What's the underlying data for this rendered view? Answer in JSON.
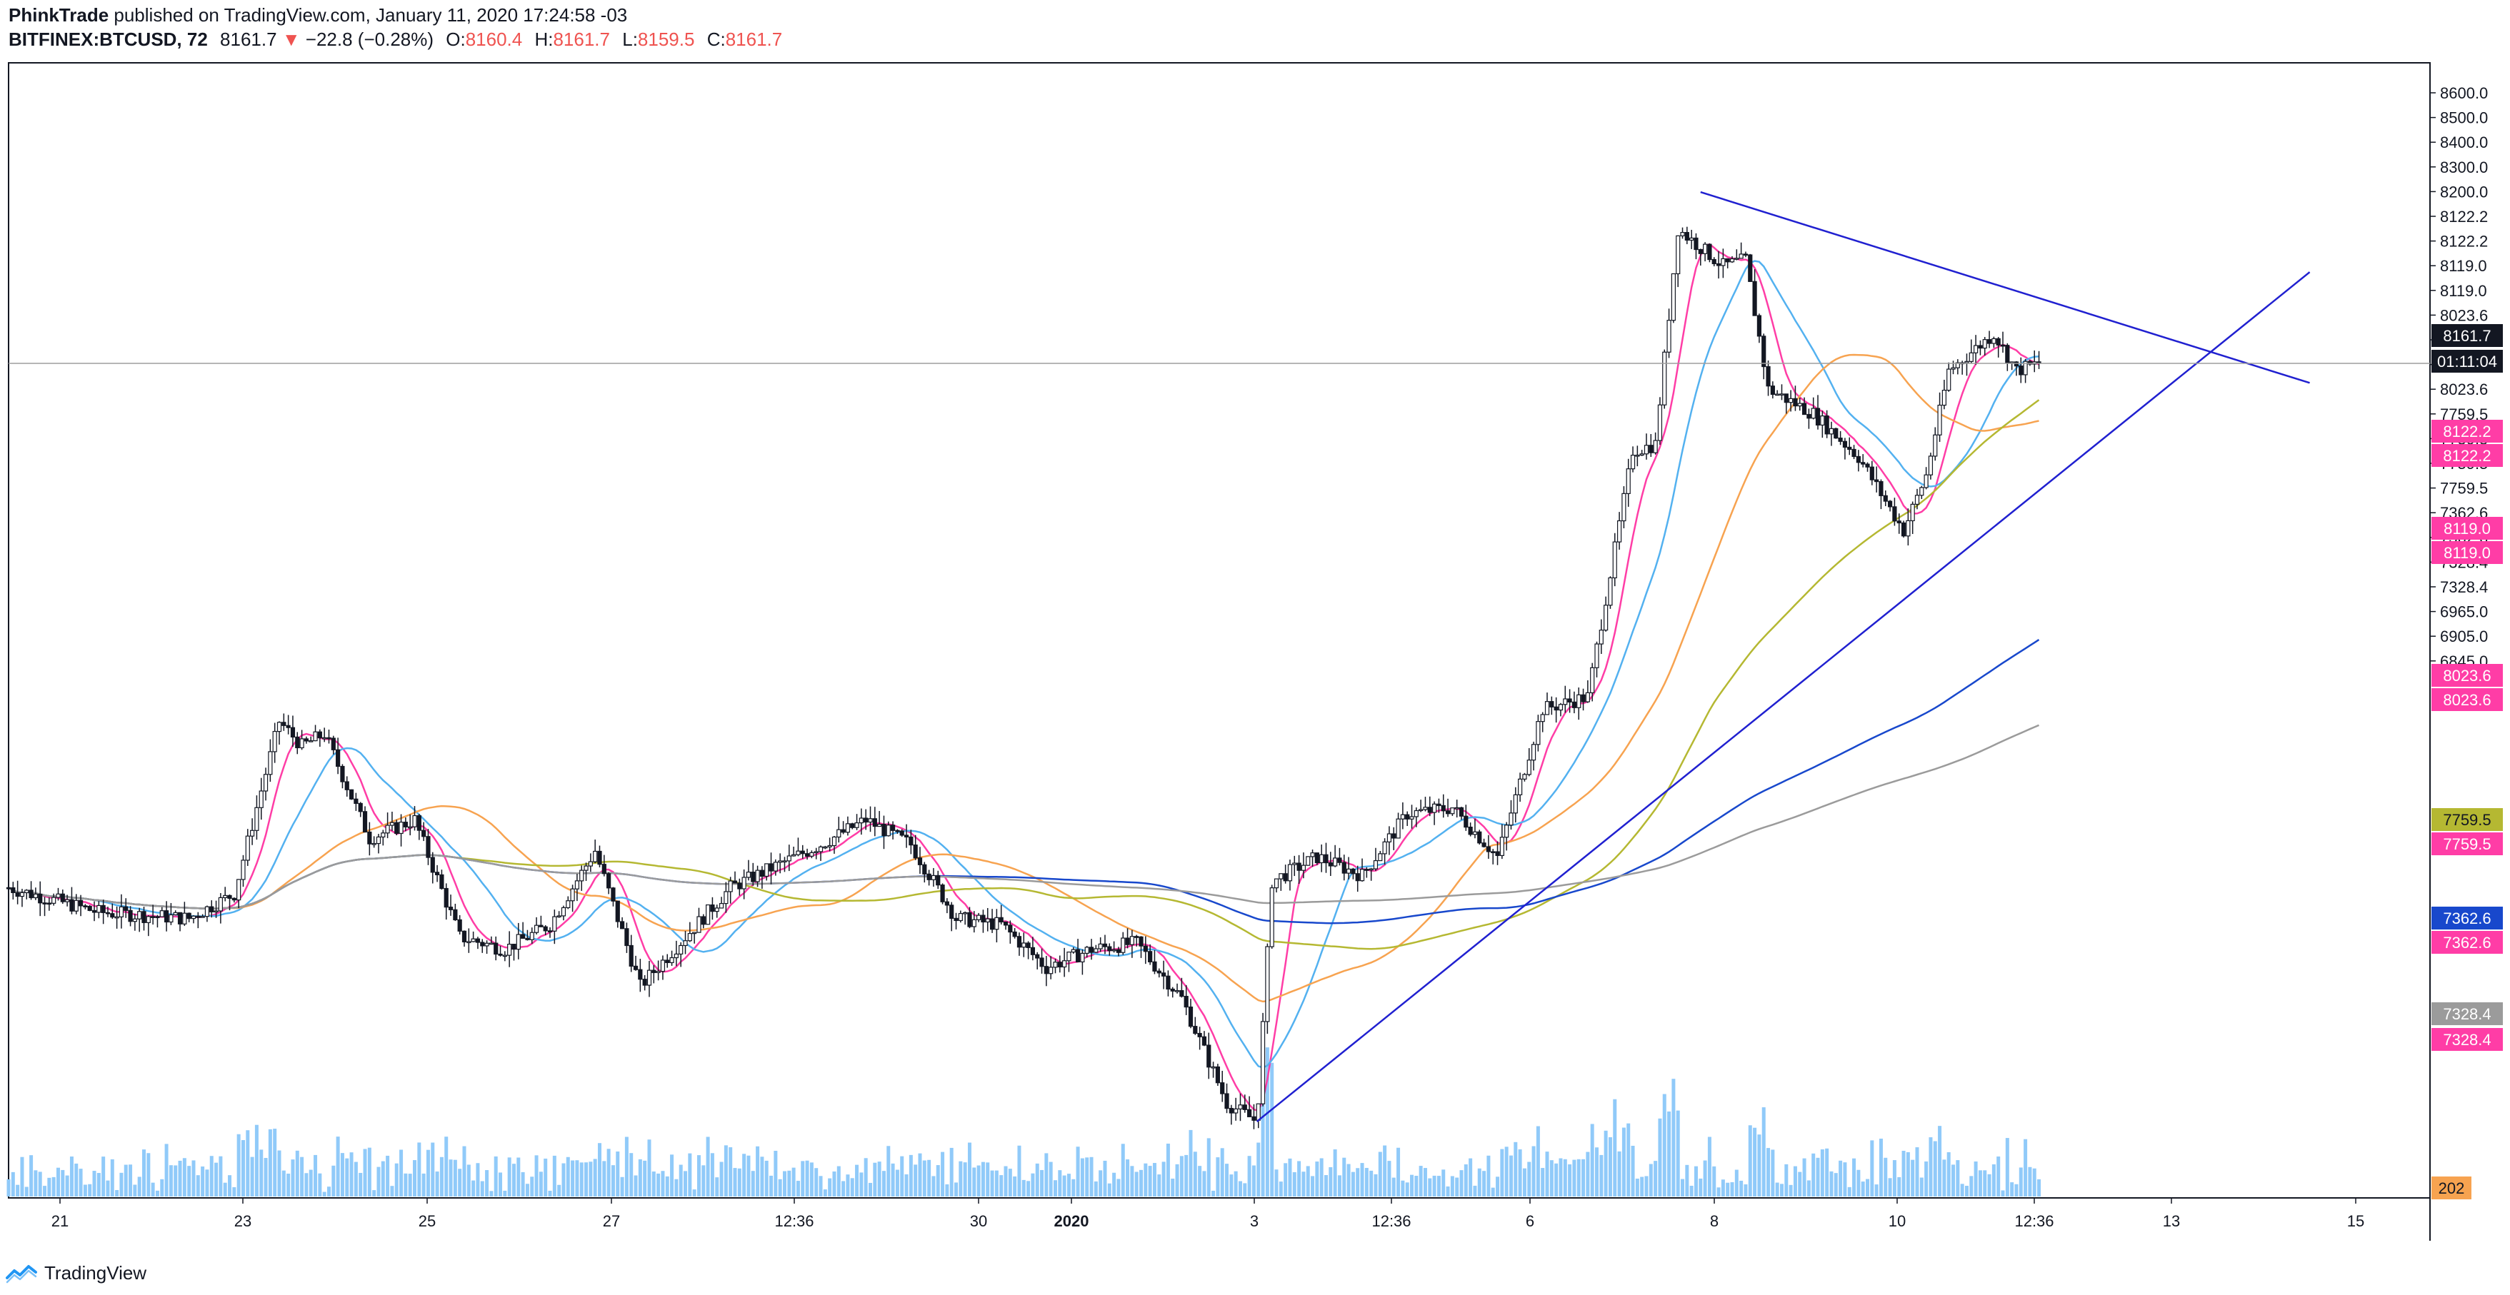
{
  "header": {
    "publisher": "PhinkTrade",
    "published_text": "published on TradingView.com, January 11, 2020 17:24:58 -03",
    "symbol": "BITFINEX:BTCUSD, 72",
    "last": "8161.7",
    "change": "−22.8 (−0.28%)",
    "open_label": "O:",
    "open": "8160.4",
    "high_label": "H:",
    "high": "8161.7",
    "low_label": "L:",
    "low": "8159.5",
    "close_label": "C:",
    "close": "8161.7",
    "down_color": "#ef5350"
  },
  "footer": {
    "brand": "TradingView",
    "logo_icon": "tradingview-logo-icon",
    "logo_color": "#2196f3"
  },
  "chart_data": {
    "type": "candlestick",
    "x_tick_labels": [
      "21",
      "23",
      "25",
      "27",
      "12:36",
      "30",
      "2020",
      "3",
      "12:36",
      "6",
      "8",
      "10",
      "12:36",
      "13",
      "15"
    ],
    "y_tick_labels": [
      "8600.0",
      "8500.0",
      "8400.0",
      "8300.0",
      "8200.0",
      "8122.2",
      "8122.2",
      "8119.0",
      "8119.0",
      "8023.6",
      "8023.6",
      "8023.6",
      "8023.6",
      "7759.5",
      "7759.5",
      "7759.5",
      "7759.5",
      "7362.6",
      "7362.6",
      "7328.4",
      "7328.4",
      "6965.0",
      "6905.0",
      "6845.0"
    ],
    "price_labels": [
      {
        "text": "8161.7",
        "bg": "#131722",
        "fg": "#ffffff"
      },
      {
        "text": "01:11:04",
        "bg": "#131722",
        "fg": "#ffffff"
      },
      {
        "text": "8122.2",
        "bg": "#ff3da6",
        "fg": "#ffffff"
      },
      {
        "text": "8122.2",
        "bg": "#ff3da6",
        "fg": "#ffffff"
      },
      {
        "text": "8119.0",
        "bg": "#ff3da6",
        "fg": "#ffffff"
      },
      {
        "text": "8119.0",
        "bg": "#ff3da6",
        "fg": "#ffffff"
      },
      {
        "text": "8023.6",
        "bg": "#ff3da6",
        "fg": "#ffffff"
      },
      {
        "text": "8023.6",
        "bg": "#ff3da6",
        "fg": "#ffffff"
      },
      {
        "text": "7759.5",
        "bg": "#b5b832",
        "fg": "#131722"
      },
      {
        "text": "7759.5",
        "bg": "#ff3da6",
        "fg": "#ffffff"
      },
      {
        "text": "7362.6",
        "bg": "#1848cc",
        "fg": "#ffffff"
      },
      {
        "text": "7362.6",
        "bg": "#ff3da6",
        "fg": "#ffffff"
      },
      {
        "text": "7328.4",
        "bg": "#9b9b9b",
        "fg": "#ffffff"
      },
      {
        "text": "7328.4",
        "bg": "#ff3da6",
        "fg": "#ffffff"
      },
      {
        "text": "202",
        "bg": "#f7a350",
        "fg": "#131722"
      }
    ],
    "price_key_points": [
      {
        "date": "Dec 20",
        "price": 7310
      },
      {
        "date": "Dec 21",
        "price": 7270
      },
      {
        "date": "Dec 22",
        "price": 7260
      },
      {
        "date": "Dec 22 12:00",
        "price": 7300
      },
      {
        "date": "Dec 23",
        "price": 7580
      },
      {
        "date": "Dec 23 06:00",
        "price": 7540
      },
      {
        "date": "Dec 23 12:00",
        "price": 7560
      },
      {
        "date": "Dec 24",
        "price": 7390
      },
      {
        "date": "Dec 24 12:00",
        "price": 7420
      },
      {
        "date": "Dec 25",
        "price": 7230
      },
      {
        "date": "Dec 25 12:00",
        "price": 7210
      },
      {
        "date": "Dec 26",
        "price": 7250
      },
      {
        "date": "Dec 26 12:00",
        "price": 7370
      },
      {
        "date": "Dec 27",
        "price": 7150
      },
      {
        "date": "Dec 27 12:00",
        "price": 7230
      },
      {
        "date": "Dec 28",
        "price": 7310
      },
      {
        "date": "Dec 29",
        "price": 7380
      },
      {
        "date": "Dec 29 12:00",
        "price": 7420
      },
      {
        "date": "Dec 30",
        "price": 7380
      },
      {
        "date": "Dec 30 12:00",
        "price": 7260
      },
      {
        "date": "Dec 31",
        "price": 7250
      },
      {
        "date": "Dec 31 12:00",
        "price": 7180
      },
      {
        "date": "Jan 1",
        "price": 7210
      },
      {
        "date": "Jan 1 12:00",
        "price": 7220
      },
      {
        "date": "Jan 2",
        "price": 7130
      },
      {
        "date": "Jan 2 12:00",
        "price": 6960
      },
      {
        "date": "Jan 2 20:00",
        "price": 6930
      },
      {
        "date": "Jan 3",
        "price": 7320
      },
      {
        "date": "Jan 3 12:00",
        "price": 7360
      },
      {
        "date": "Jan 4",
        "price": 7330
      },
      {
        "date": "Jan 4 12:00",
        "price": 7430
      },
      {
        "date": "Jan 5",
        "price": 7440
      },
      {
        "date": "Jan 5 12:00",
        "price": 7360
      },
      {
        "date": "Jan 6",
        "price": 7600
      },
      {
        "date": "Jan 6 12:00",
        "price": 7620
      },
      {
        "date": "Jan 7",
        "price": 8020
      },
      {
        "date": "Jan 7 06:00",
        "price": 8030
      },
      {
        "date": "Jan 7 12:00",
        "price": 8380
      },
      {
        "date": "Jan 8",
        "price": 8320
      },
      {
        "date": "Jan 8 06:00",
        "price": 8330
      },
      {
        "date": "Jan 8 12:00",
        "price": 8120
      },
      {
        "date": "Jan 9",
        "price": 8080
      },
      {
        "date": "Jan 9 12:00",
        "price": 8010
      },
      {
        "date": "Jan 10",
        "price": 7890
      },
      {
        "date": "Jan 10 06:00",
        "price": 7980
      },
      {
        "date": "Jan 10 12:00",
        "price": 8150
      },
      {
        "date": "Jan 11",
        "price": 8210
      },
      {
        "date": "Jan 11 06:00",
        "price": 8150
      },
      {
        "date": "Jan 11 12:00",
        "price": 8162
      }
    ],
    "trendlines": [
      {
        "name": "descending-resistance",
        "from": {
          "date": "Jan 7 18:00",
          "price": 8440
        },
        "to": {
          "date": "Jan 14 12:00",
          "price": 8130
        }
      },
      {
        "name": "ascending-support",
        "from": {
          "date": "Jan 2 20:00",
          "price": 6930
        },
        "to": {
          "date": "Jan 14 12:00",
          "price": 8310
        }
      }
    ],
    "last_price_line": 8161.7,
    "moving_average_colors": [
      "#ff3da6",
      "#53b1f0",
      "#f7a350",
      "#b5b832",
      "#1848cc",
      "#9b9b9b"
    ],
    "candle_color": "#131722",
    "volume_color": "#90caf9",
    "trendline_color": "#2020d0",
    "grid": false
  }
}
